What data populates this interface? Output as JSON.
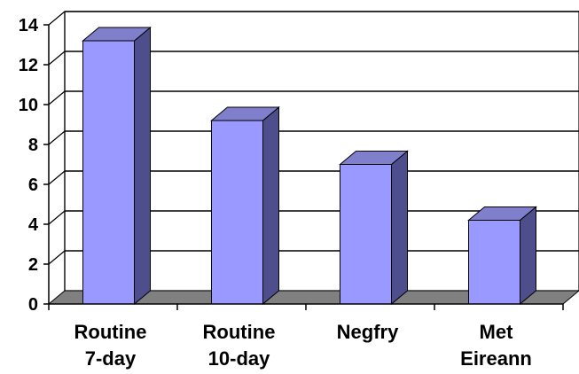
{
  "chart_data": {
    "type": "bar",
    "categories": [
      [
        "Routine",
        "7-day"
      ],
      [
        "Routine",
        "10-day"
      ],
      [
        "Negfry"
      ],
      [
        "Met",
        "Eireann"
      ]
    ],
    "values": [
      13.2,
      9.2,
      7.0,
      4.2
    ],
    "ylim": [
      0,
      14
    ],
    "yticks": [
      "0",
      "2",
      "4",
      "6",
      "8",
      "10",
      "12",
      "14"
    ],
    "grid": true,
    "style": "3d",
    "colors": {
      "bar_front": "#9999ff",
      "bar_side": "#4e4e8c",
      "bar_top": "#7f7fcc",
      "floor": "#808080",
      "wall": "#ffffff",
      "grid": "#000000"
    }
  }
}
